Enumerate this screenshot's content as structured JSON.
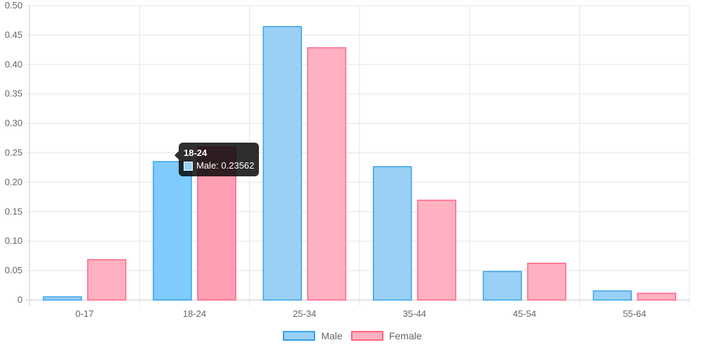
{
  "chart_data": {
    "type": "bar",
    "categories": [
      "0-17",
      "18-24",
      "25-34",
      "35-44",
      "45-54",
      "55-64"
    ],
    "series": [
      {
        "name": "Male",
        "values": [
          0.006,
          0.23562,
          0.465,
          0.227,
          0.049,
          0.016
        ],
        "fill": "#9ad0f5",
        "border": "#36a2eb",
        "hover_fill": "#7fcbfd"
      },
      {
        "name": "Female",
        "values": [
          0.069,
          0.26,
          0.429,
          0.17,
          0.063,
          0.012
        ],
        "fill": "#ffb1c1",
        "border": "#ff6384",
        "hover_fill": "#ff9fb3"
      }
    ],
    "ylim": [
      0,
      0.5
    ],
    "yticks": [
      "0",
      "0.05",
      "0.10",
      "0.15",
      "0.20",
      "0.25",
      "0.30",
      "0.35",
      "0.40",
      "0.45",
      "0.50"
    ],
    "grid": true,
    "legend_position": "bottom",
    "hovered": {
      "series": 0,
      "category": 1
    }
  },
  "tooltip": {
    "title": "18-24",
    "label": "Male: 0.23562"
  }
}
